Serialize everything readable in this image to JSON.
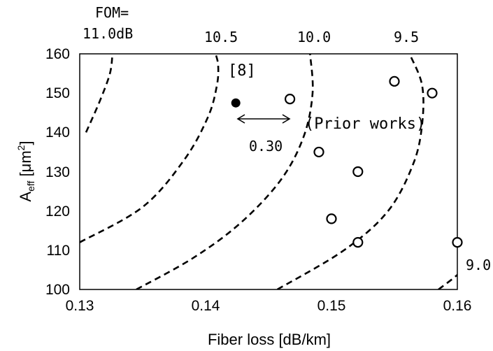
{
  "chart_data": {
    "type": "scatter",
    "xlabel": "Fiber loss [dB/km]",
    "ylabel": "A",
    "ylabel_sub": "eff",
    "ylabel_unit_pre": " [μm",
    "ylabel_unit_sup": "2",
    "ylabel_unit_post": "]",
    "xlim": [
      0.13,
      0.16
    ],
    "ylim": [
      100,
      160
    ],
    "xticks": [
      "0.13",
      "0.14",
      "0.15",
      "0.16"
    ],
    "yticks": [
      "100",
      "110",
      "120",
      "130",
      "140",
      "150",
      "160"
    ],
    "series": [
      {
        "marker": "filled-circle",
        "points": [
          {
            "x": 0.1424,
            "y": 147.5
          }
        ],
        "label": "[8]"
      },
      {
        "marker": "open-circle",
        "label": "(Prior works)",
        "points": [
          {
            "x": 0.1467,
            "y": 148.5
          },
          {
            "x": 0.149,
            "y": 135.0
          },
          {
            "x": 0.15,
            "y": 118.0
          },
          {
            "x": 0.1521,
            "y": 130.0
          },
          {
            "x": 0.1521,
            "y": 112.0
          },
          {
            "x": 0.155,
            "y": 153.0
          },
          {
            "x": 0.158,
            "y": 150.0
          },
          {
            "x": 0.16,
            "y": 112.0
          }
        ]
      }
    ],
    "contours": [
      {
        "label": "11.0dB",
        "points": [
          [
            0.1305,
            140
          ],
          [
            0.1316,
            148
          ],
          [
            0.1324,
            155
          ],
          [
            0.1326,
            160
          ]
        ]
      },
      {
        "label": "10.5",
        "points": [
          [
            0.13,
            112
          ],
          [
            0.135,
            121
          ],
          [
            0.1383,
            133
          ],
          [
            0.1402,
            144
          ],
          [
            0.1409,
            152
          ],
          [
            0.141,
            157
          ],
          [
            0.1408,
            160
          ]
        ]
      },
      {
        "label": "10.0",
        "points": [
          [
            0.1345,
            100
          ],
          [
            0.139,
            108
          ],
          [
            0.1428,
            117
          ],
          [
            0.146,
            128
          ],
          [
            0.1478,
            139
          ],
          [
            0.1485,
            150
          ],
          [
            0.1483,
            160
          ]
        ]
      },
      {
        "label": "9.5",
        "points": [
          [
            0.1457,
            100
          ],
          [
            0.151,
            110
          ],
          [
            0.1545,
            120
          ],
          [
            0.1565,
            132
          ],
          [
            0.1572,
            142
          ],
          [
            0.1572,
            152
          ],
          [
            0.1562,
            160
          ]
        ]
      },
      {
        "label": "9.0",
        "points": [
          [
            0.1585,
            100
          ],
          [
            0.1601,
            104
          ],
          [
            0.1612,
            108
          ]
        ]
      }
    ],
    "top_labels": {
      "fom": "FOM=",
      "c1": "11.0dB",
      "c2": "10.5",
      "c3": "10.0",
      "c4": "9.5"
    },
    "annotations": {
      "delta": "0.30",
      "ref": "[8]",
      "prior": "(Prior works)",
      "c5": "9.0"
    },
    "grid": false
  }
}
